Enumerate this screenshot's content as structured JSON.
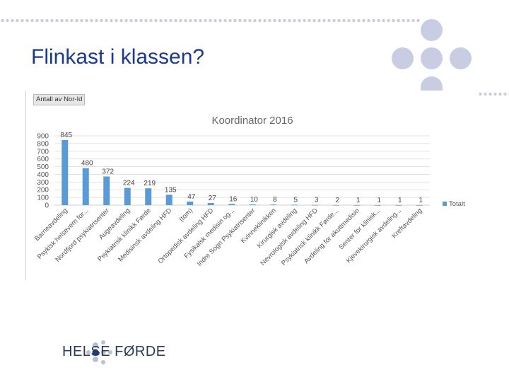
{
  "slide": {
    "title": "Flinkast i klassen?",
    "logo_text": "HELSE FØRDE",
    "field_button": "Antall av Nor-Id"
  },
  "colors": {
    "title": "#1a3a8c",
    "bar": "#5b9bd5",
    "decor": "#c9cde3"
  },
  "chart_data": {
    "type": "bar",
    "title": "Koordinator 2016",
    "legend": [
      "Totalt"
    ],
    "legend_position": "right",
    "yticks": [
      0,
      100,
      200,
      300,
      400,
      500,
      600,
      700,
      800,
      900
    ],
    "ylim": [
      0,
      900
    ],
    "grid": true,
    "categories": [
      "Barneavdeling",
      "Psykisk helsevern for...",
      "Nordfjord psykiatrisenter",
      "Augeavdeling",
      "Psykiatrisk klinikk Førde",
      "Medisinsk avdeling HFD",
      "(tom)",
      "Ortopedisk avdeling HFD",
      "Fysikalsk medisin og...",
      "Indre Sogn Psykiatrisenter",
      "Kvinneklinikken",
      "Kirurgisk avdeling",
      "Nevrologisk avdeling HFD",
      "Psykiatrisk klinikk Førde...",
      "Avdeling for akuttmedisin",
      "Senter for klinisk...",
      "Kjevekirurgisk avdeling...",
      "Kreftavdeling"
    ],
    "values": [
      845,
      480,
      372,
      224,
      219,
      135,
      47,
      27,
      16,
      10,
      8,
      5,
      3,
      2,
      1,
      1,
      1,
      1
    ],
    "xlabel": "",
    "ylabel": ""
  }
}
